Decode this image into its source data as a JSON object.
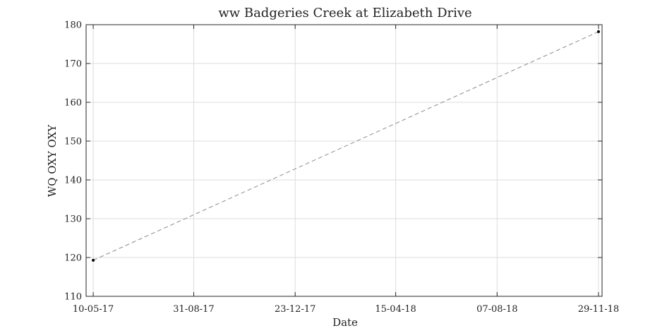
{
  "chart_data": {
    "type": "line",
    "title": "ww Badgeries Creek at Elizabeth Drive",
    "xlabel": "Date",
    "ylabel": "WQ OXY OXY",
    "x_type": "date",
    "xlim": [
      "2017-05-02",
      "2018-12-03"
    ],
    "x_ticks": [
      {
        "date": "2017-05-10",
        "label": "10-05-17"
      },
      {
        "date": "2017-08-31",
        "label": "31-08-17"
      },
      {
        "date": "2017-12-23",
        "label": "23-12-17"
      },
      {
        "date": "2018-04-15",
        "label": "15-04-18"
      },
      {
        "date": "2018-08-07",
        "label": "07-08-18"
      },
      {
        "date": "2018-11-29",
        "label": "29-11-18"
      }
    ],
    "ylim": [
      110,
      180
    ],
    "y_ticks": [
      110,
      120,
      130,
      140,
      150,
      160,
      170,
      180
    ],
    "grid": true,
    "series": [
      {
        "line_style": "dashed",
        "line_color": "#8c8c8c",
        "marker_color": "#000000",
        "points": [
          {
            "x": "2017-05-10",
            "y": 119.3
          },
          {
            "x": "2018-11-29",
            "y": 178.2
          }
        ]
      }
    ]
  }
}
